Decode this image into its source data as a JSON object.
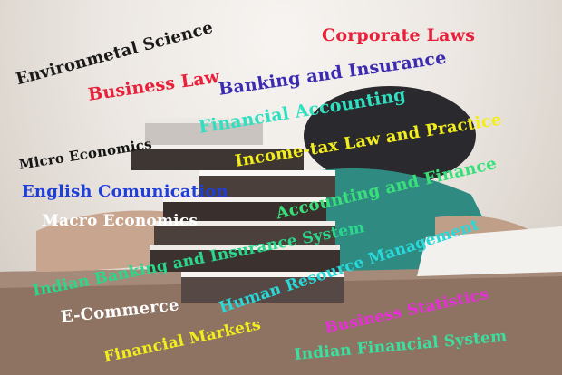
{
  "subjects": [
    {
      "id": "environmental-science",
      "text": "Environmetal Science",
      "color": "#1a1a1a"
    },
    {
      "id": "corporate-laws",
      "text": "Corporate Laws",
      "color": "#e8203a"
    },
    {
      "id": "business-law",
      "text": "Business Law",
      "color": "#e8203a"
    },
    {
      "id": "banking-insurance",
      "text": "Banking and Insurance",
      "color": "#3a2bb0"
    },
    {
      "id": "financial-accounting",
      "text": "Financial Accounting",
      "color": "#2fe0c0"
    },
    {
      "id": "micro-economics",
      "text": "Micro Economics",
      "color": "#141414"
    },
    {
      "id": "income-tax",
      "text": "Income-tax Law and Practice",
      "color": "#f2ee1e"
    },
    {
      "id": "english-communication",
      "text": "English Comunication",
      "color": "#1f3fd9"
    },
    {
      "id": "accounting-finance",
      "text": "Accounting and Finance",
      "color": "#39e07a"
    },
    {
      "id": "macro-economics",
      "text": "Macro Economics",
      "color": "#ffffff"
    },
    {
      "id": "indian-banking",
      "text": "Indian Banking and Insurance System",
      "color": "#2ad88c"
    },
    {
      "id": "hrm",
      "text": "Human Resource Management",
      "color": "#29d8d8"
    },
    {
      "id": "e-commerce",
      "text": "E-Commerce",
      "color": "#ffffff"
    },
    {
      "id": "business-statistics",
      "text": "Business Statistics",
      "color": "#e830d8"
    },
    {
      "id": "financial-markets",
      "text": "Financial Markets",
      "color": "#f2ee1e"
    },
    {
      "id": "indian-financial-system",
      "text": "Indian Financial System",
      "color": "#3ae0a0"
    }
  ]
}
